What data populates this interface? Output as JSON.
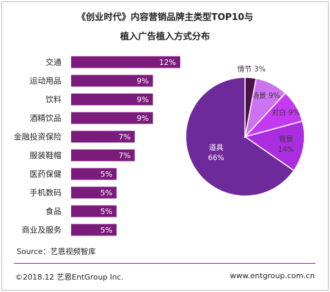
{
  "title_line1": "《创业时代》内容营销品牌主类型TOP10与",
  "title_line2": "植入广告植入方式分布",
  "source": "Source：艺恩视频智库",
  "footer": {
    "copyright": "©2018.12 艺恩EntGroup Inc.",
    "website": "www.entgroup.com.cn"
  },
  "colors": {
    "bar": "#7b1c7c",
    "slices": [
      "#6e2a9a",
      "#aa2ee0",
      "#c43af2",
      "#cc74ef",
      "#4d1248"
    ]
  },
  "chart_data": [
    {
      "type": "bar",
      "orientation": "horizontal",
      "categories": [
        "交通",
        "运动用品",
        "饮料",
        "酒精饮品",
        "金融投资保险",
        "服装鞋帽",
        "医药保健",
        "手机数码",
        "食品",
        "商业及服务"
      ],
      "values": [
        12,
        9,
        9,
        9,
        7,
        7,
        5,
        5,
        5,
        5
      ],
      "value_labels": [
        "12%",
        "9%",
        "9%",
        "9%",
        "7%",
        "7%",
        "5%",
        "5%",
        "5%",
        "5%"
      ],
      "unit": "%"
    },
    {
      "type": "pie",
      "labels": [
        "道具",
        "背景",
        "对白",
        "场景",
        "情节"
      ],
      "values": [
        66,
        14,
        9,
        9,
        3
      ],
      "value_labels": [
        "66%",
        "14%",
        "9%",
        "9%",
        "3%"
      ]
    }
  ]
}
